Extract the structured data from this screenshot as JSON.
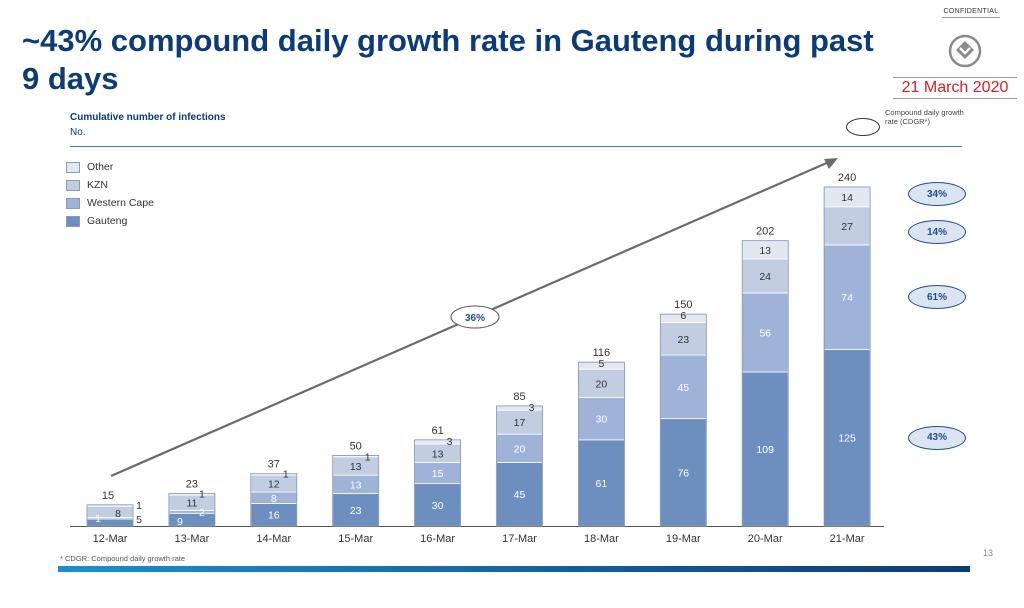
{
  "slide": {
    "title": "~43% compound daily growth rate in Gauteng during past 9 days",
    "confidential": "CONFIDENTIAL",
    "date": "21 March 2020",
    "footnote": "* CDGR: Compound daily growth rate",
    "page_number": "13",
    "logo_icon": "discovery-logo-icon",
    "colors": {
      "title": "#0b3b78",
      "date": "#d42027",
      "accent": "#1f4e8c"
    }
  },
  "chart_data": {
    "type": "bar",
    "stacked": true,
    "title": "Cumulative number of infections",
    "ylabel": "No.",
    "categories": [
      "12-Mar",
      "13-Mar",
      "14-Mar",
      "15-Mar",
      "16-Mar",
      "17-Mar",
      "18-Mar",
      "19-Mar",
      "20-Mar",
      "21-Mar"
    ],
    "series": [
      {
        "name": "Gauteng",
        "color": "#6d8fbf",
        "values": [
          5,
          9,
          16,
          23,
          30,
          45,
          61,
          76,
          109,
          125
        ]
      },
      {
        "name": "Western Cape",
        "color": "#9fb3d8",
        "values": [
          1,
          2,
          8,
          13,
          15,
          20,
          30,
          45,
          56,
          74
        ]
      },
      {
        "name": "KZN",
        "color": "#c3cde2",
        "values": [
          8,
          11,
          12,
          13,
          13,
          17,
          20,
          23,
          24,
          27
        ]
      },
      {
        "name": "Other",
        "color": "#e2e7f2",
        "values": [
          1,
          1,
          1,
          1,
          3,
          3,
          5,
          6,
          13,
          14
        ]
      }
    ],
    "totals": [
      15,
      23,
      37,
      50,
      61,
      85,
      116,
      150,
      202,
      240
    ],
    "legend_order": [
      "Other",
      "KZN",
      "Western Cape",
      "Gauteng"
    ],
    "legend_position": "top-left",
    "ylim": [
      0,
      240
    ],
    "grid": false,
    "overall_cdgr": "36%",
    "cdgr_legend": "Compound daily growth rate (CDGR*)",
    "cdgr_by_series": [
      {
        "series": "Other",
        "label": "34%"
      },
      {
        "series": "KZN",
        "label": "14%"
      },
      {
        "series": "Western Cape",
        "label": "61%"
      },
      {
        "series": "Gauteng",
        "label": "43%"
      }
    ]
  }
}
